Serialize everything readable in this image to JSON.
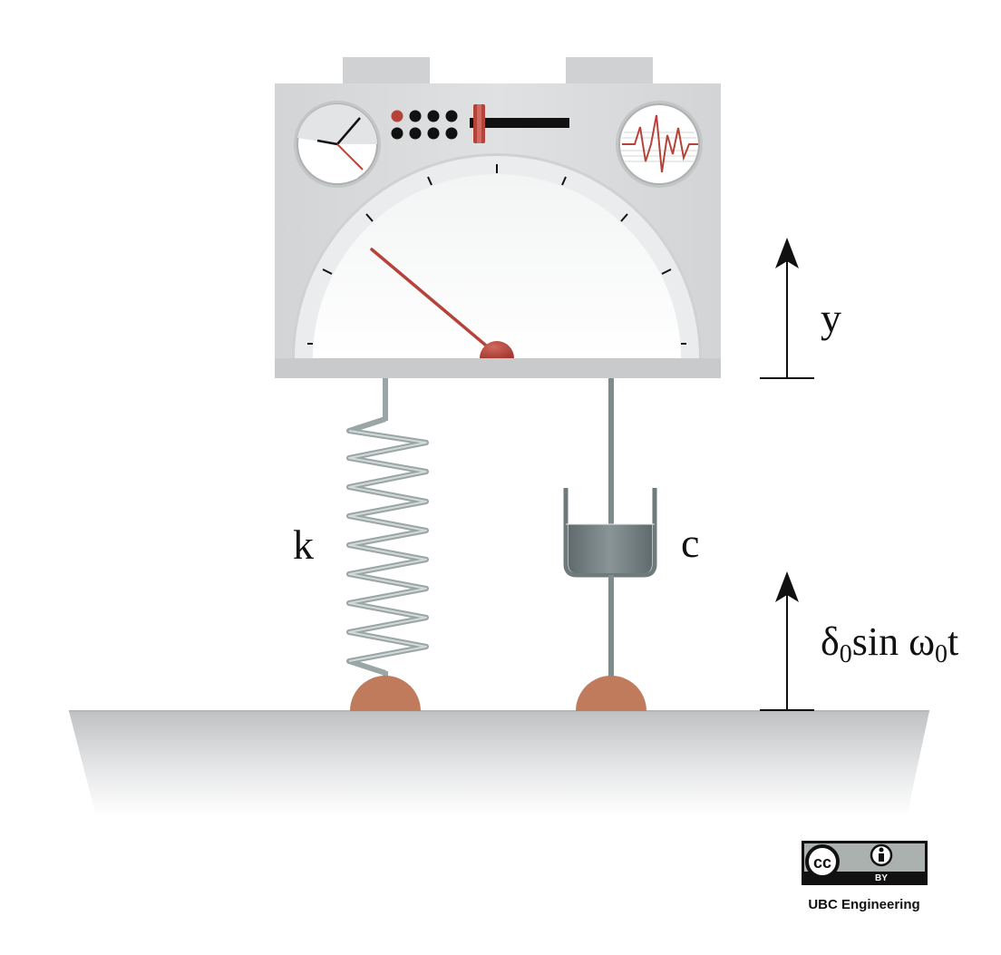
{
  "labels": {
    "spring": "k",
    "damper": "c",
    "displacement": "y",
    "base_motion_prefix": "δ",
    "base_motion_sub1": "0",
    "base_motion_mid": "sin ω",
    "base_motion_sub2": "0",
    "base_motion_suffix": "t"
  },
  "license": {
    "cc_glyph": "cc",
    "by_label": "BY",
    "credit": "UBC Engineering"
  },
  "colors": {
    "instrument_body": "#d7d9da",
    "needle": "#b5433a",
    "spring": "#9aa5a6",
    "damper": "#6e7a7c",
    "pivot_feet": "#c07a5c",
    "ground": "#c2c4c5",
    "arrows": "#111111"
  },
  "icons": {
    "clock_gauge": "clock-icon",
    "waveform_gauge": "waveform-icon",
    "person": "person-icon"
  }
}
